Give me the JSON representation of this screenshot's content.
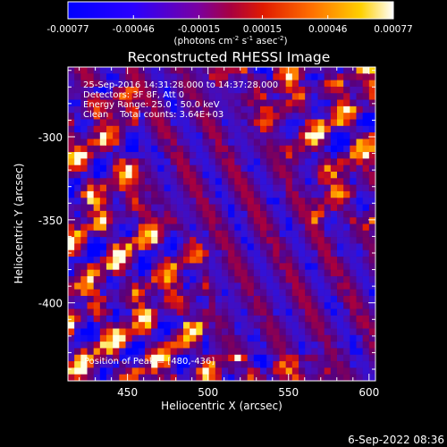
{
  "chart_data": {
    "type": "heatmap",
    "title": "Reconstructed RHESSI Image",
    "xlabel": "Heliocentric X (arcsec)",
    "ylabel": "Heliocentric Y (arcsec)",
    "xlim": [
      413,
      604
    ],
    "ylim": [
      -447,
      -258
    ],
    "xticks": [
      450,
      500,
      550,
      600
    ],
    "yticks": [
      -300,
      -350,
      -400
    ],
    "colorbar": {
      "range": [
        -0.00077,
        0.00077
      ],
      "tick_values": [
        -0.00077,
        -0.00046,
        -0.00015,
        0.00015,
        0.00046,
        0.00077
      ],
      "tick_labels": [
        "-0.00077",
        "-0.00046",
        "-0.00015",
        "0.00015",
        "0.00046",
        "0.00077"
      ],
      "unit_prefix": "(photons cm",
      "unit_sup1": "-2",
      "unit_mid1": " s",
      "unit_sup2": "-1",
      "unit_mid2": " asec",
      "unit_sup3": "-2",
      "unit_suffix": ")"
    },
    "annotations": [
      "25-Sep-2016 14:31:28.000 to 14:37:28.000",
      "Detectors: 3F 8F, Att 0",
      "Energy Range: 25.0 - 50.0 keV",
      "Clean    Total counts: 3.64E+03"
    ],
    "peak_label": "Position of Peak = [480,-436]",
    "peak_position": [
      480,
      -436
    ],
    "grid": false
  },
  "footer": {
    "date": "6-Sep-2022 08:36"
  }
}
